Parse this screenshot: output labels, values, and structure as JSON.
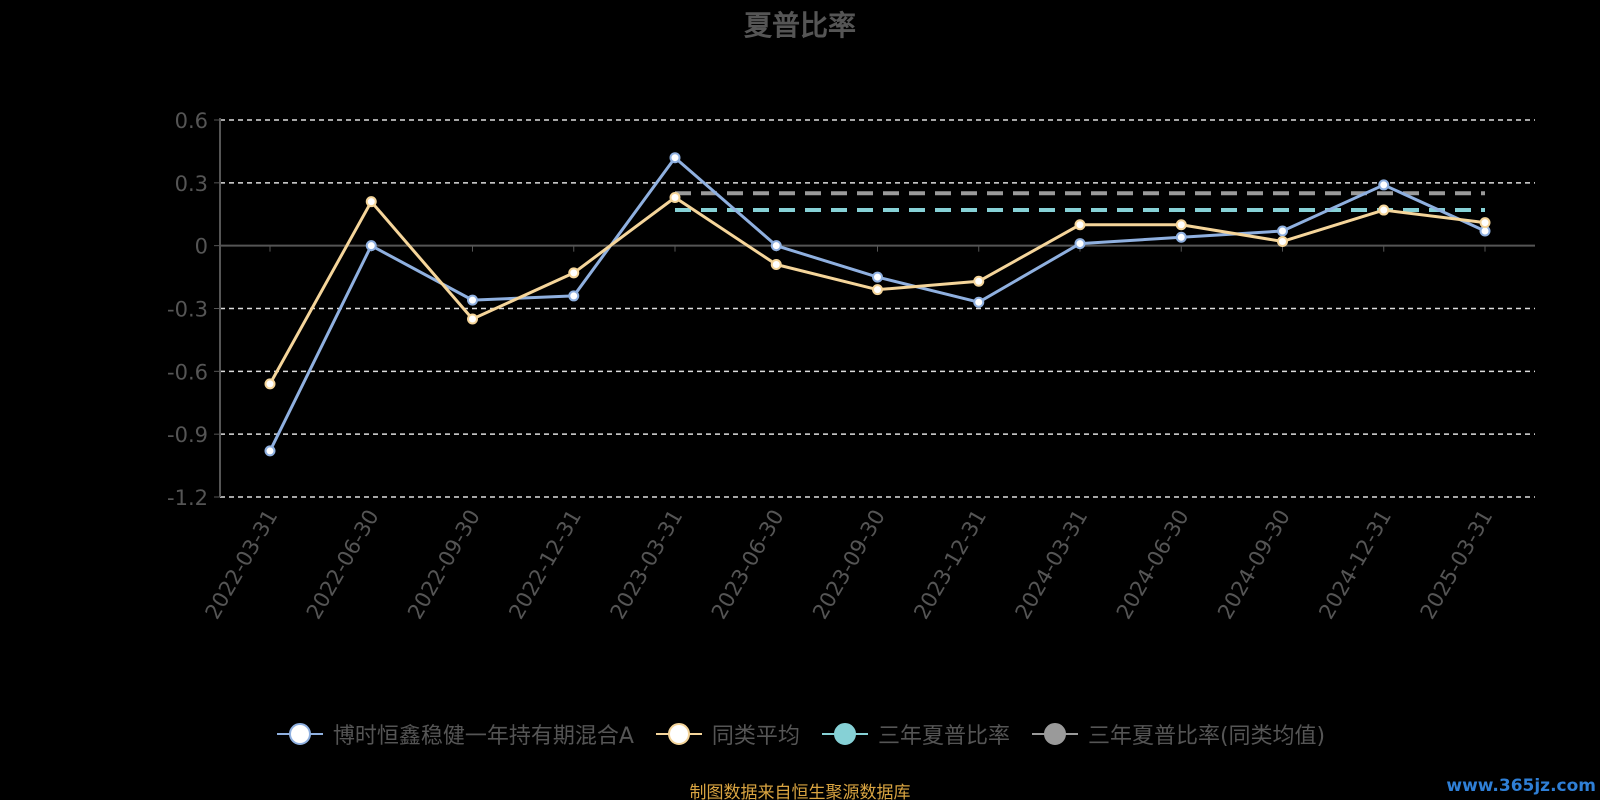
{
  "chart_data": {
    "type": "line",
    "title": "夏普比率",
    "categories": [
      "2022-03-31",
      "2022-06-30",
      "2022-09-30",
      "2022-12-31",
      "2023-03-31",
      "2023-06-30",
      "2023-09-30",
      "2023-12-31",
      "2024-03-31",
      "2024-06-30",
      "2024-09-30",
      "2024-12-31",
      "2025-03-31"
    ],
    "ylim": [
      -1.2,
      0.6
    ],
    "yticks": [
      "0.6",
      "0.3",
      "0",
      "-0.3",
      "-0.6",
      "-0.9",
      "-1.2"
    ],
    "ytick_values": [
      0.6,
      0.3,
      0,
      -0.3,
      -0.6,
      -0.9,
      -1.2
    ],
    "grid": true,
    "legend_position": "bottom",
    "series": [
      {
        "name": "博时恒鑫稳健一年持有期混合A",
        "color": "#8fb0e0",
        "values": [
          -0.98,
          0.0,
          -0.26,
          -0.24,
          0.42,
          0.0,
          -0.15,
          -0.27,
          0.01,
          0.04,
          0.07,
          0.29,
          0.07
        ]
      },
      {
        "name": "同类平均",
        "color": "#f5d59a",
        "values": [
          -0.66,
          0.21,
          -0.35,
          -0.13,
          0.23,
          -0.09,
          -0.21,
          -0.17,
          0.1,
          0.1,
          0.02,
          0.17,
          0.11
        ]
      },
      {
        "name": "三年夏普比率",
        "color": "#86d1d6",
        "dashed": true,
        "start_category": "2023-03-31",
        "value": 0.17
      },
      {
        "name": "三年夏普比率(同类均值)",
        "color": "#9a9a9a",
        "dashed": true,
        "start_category": "2023-03-31",
        "value": 0.25
      }
    ]
  },
  "legend": {
    "items": [
      {
        "label": "博时恒鑫稳健一年持有期混合A",
        "color": "#8fb0e0",
        "marker_fill": "#ffffff"
      },
      {
        "label": "同类平均",
        "color": "#f5d59a",
        "marker_fill": "#ffffff"
      },
      {
        "label": "三年夏普比率",
        "color": "#86d1d6",
        "marker_fill": "#86d1d6"
      },
      {
        "label": "三年夏普比率(同类均值)",
        "color": "#9a9a9a",
        "marker_fill": "#9a9a9a"
      }
    ]
  },
  "footer": {
    "source": "制图数据来自恒生聚源数据库"
  },
  "watermark": {
    "text": "www.365jz.com"
  }
}
